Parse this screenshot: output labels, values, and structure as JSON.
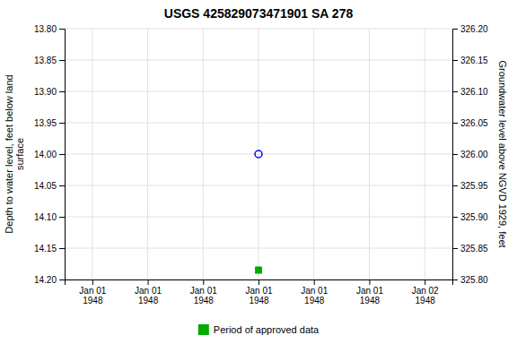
{
  "chart_data": {
    "type": "scatter",
    "title": "USGS 425829073471901 SA 278",
    "y_label": "Depth to water level, feet below land\nsurface",
    "y2_label": "Groundwater level above NGVD 1929, feet",
    "categories": [
      "Jan 01\n1948",
      "Jan 01\n1948",
      "Jan 01\n1948",
      "Jan 01\n1948",
      "Jan 01\n1948",
      "Jan 01\n1948",
      "Jan 02\n1948"
    ],
    "series": [
      {
        "color": "#0000ff",
        "marker": "circle-open",
        "values": [
          null,
          null,
          null,
          14.0,
          null,
          null,
          null
        ]
      },
      {
        "name": "Period of approved data",
        "color": "#00aa00",
        "marker": "square",
        "values": [
          null,
          null,
          null,
          14.185,
          null,
          null,
          null
        ]
      }
    ],
    "ylim": [
      14.2,
      13.8
    ],
    "yticks": [
      {
        "value": 13.8,
        "label": "13.80"
      },
      13.85,
      {
        "value": 13.9,
        "label": "13.90"
      },
      13.95,
      {
        "value": 14.0,
        "label": "14.00"
      },
      14.05,
      {
        "value": 14.1,
        "label": "14.10"
      },
      14.15,
      {
        "value": 14.2,
        "label": "14.20"
      }
    ],
    "y2lim": [
      325.8,
      326.2
    ],
    "y2ticks": [
      {
        "value": 326.2,
        "label": "326.20"
      },
      326.15,
      {
        "value": 326.1,
        "label": "326.10"
      },
      326.05,
      {
        "value": 326.0,
        "label": "326.00"
      },
      325.95,
      {
        "value": 325.9,
        "label": "325.90"
      },
      325.85,
      {
        "value": 325.8,
        "label": "325.80"
      }
    ],
    "grid": true,
    "legend": "bottom"
  }
}
